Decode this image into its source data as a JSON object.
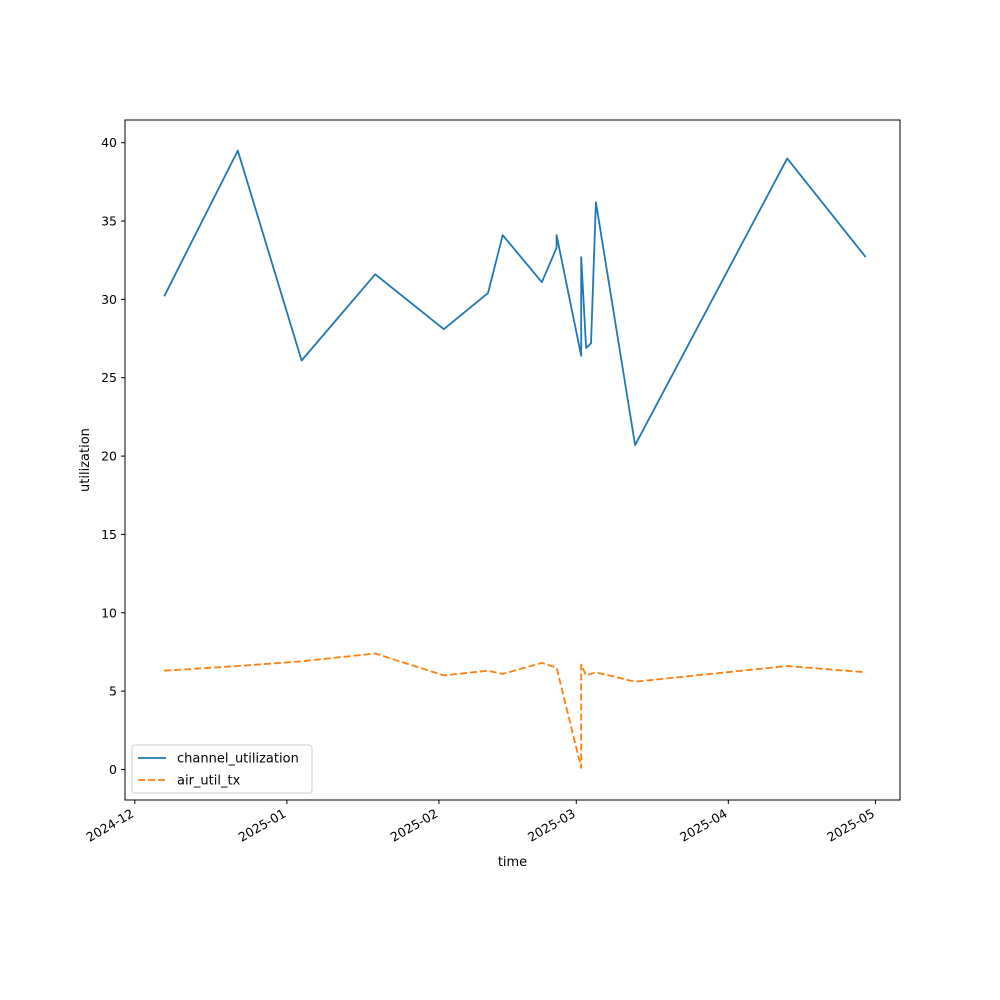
{
  "chart_data": {
    "type": "line",
    "title": "",
    "xlabel": "time",
    "ylabel": "utilization",
    "x_type": "date",
    "xlim": [
      "2024-11-29",
      "2025-05-06"
    ],
    "ylim": [
      -1.95,
      41.45
    ],
    "x_ticks": [
      {
        "date": "2024-12-01",
        "label": "2024-12"
      },
      {
        "date": "2025-01-01",
        "label": "2025-01"
      },
      {
        "date": "2025-02-01",
        "label": "2025-02"
      },
      {
        "date": "2025-03-01",
        "label": "2025-03"
      },
      {
        "date": "2025-04-01",
        "label": "2025-04"
      },
      {
        "date": "2025-05-01",
        "label": "2025-05"
      }
    ],
    "y_ticks": [
      0,
      5,
      10,
      15,
      20,
      25,
      30,
      35,
      40
    ],
    "grid": false,
    "legend": "lower-left",
    "series": [
      {
        "name": "channel_utilization",
        "color": "#1f77b4",
        "style": "solid",
        "points": [
          [
            "2024-12-07",
            30.2
          ],
          [
            "2024-12-22",
            39.5
          ],
          [
            "2025-01-04",
            26.1
          ],
          [
            "2025-01-19",
            31.6
          ],
          [
            "2025-02-02",
            28.1
          ],
          [
            "2025-02-11",
            30.4
          ],
          [
            "2025-02-14",
            34.1
          ],
          [
            "2025-02-22",
            31.1
          ],
          [
            "2025-02-25",
            33.3
          ],
          [
            "2025-02-25",
            34.1
          ],
          [
            "2025-03-02",
            26.4
          ],
          [
            "2025-03-02",
            32.7
          ],
          [
            "2025-03-03",
            26.9
          ],
          [
            "2025-03-04",
            27.2
          ],
          [
            "2025-03-05",
            36.2
          ],
          [
            "2025-03-13",
            20.7
          ],
          [
            "2025-04-13",
            39.0
          ],
          [
            "2025-04-29",
            32.7
          ]
        ]
      },
      {
        "name": "air_util_tx",
        "color": "#ff7f0e",
        "style": "dashed",
        "points": [
          [
            "2024-12-07",
            6.3
          ],
          [
            "2024-12-22",
            6.6
          ],
          [
            "2025-01-04",
            6.9
          ],
          [
            "2025-01-19",
            7.4
          ],
          [
            "2025-02-02",
            6.0
          ],
          [
            "2025-02-11",
            6.3
          ],
          [
            "2025-02-14",
            6.1
          ],
          [
            "2025-02-22",
            6.8
          ],
          [
            "2025-02-25",
            6.5
          ],
          [
            "2025-03-02",
            0.1
          ],
          [
            "2025-03-02",
            6.7
          ],
          [
            "2025-03-03",
            6.0
          ],
          [
            "2025-03-05",
            6.2
          ],
          [
            "2025-03-13",
            5.6
          ],
          [
            "2025-04-13",
            6.6
          ],
          [
            "2025-04-29",
            6.2
          ]
        ]
      }
    ]
  }
}
